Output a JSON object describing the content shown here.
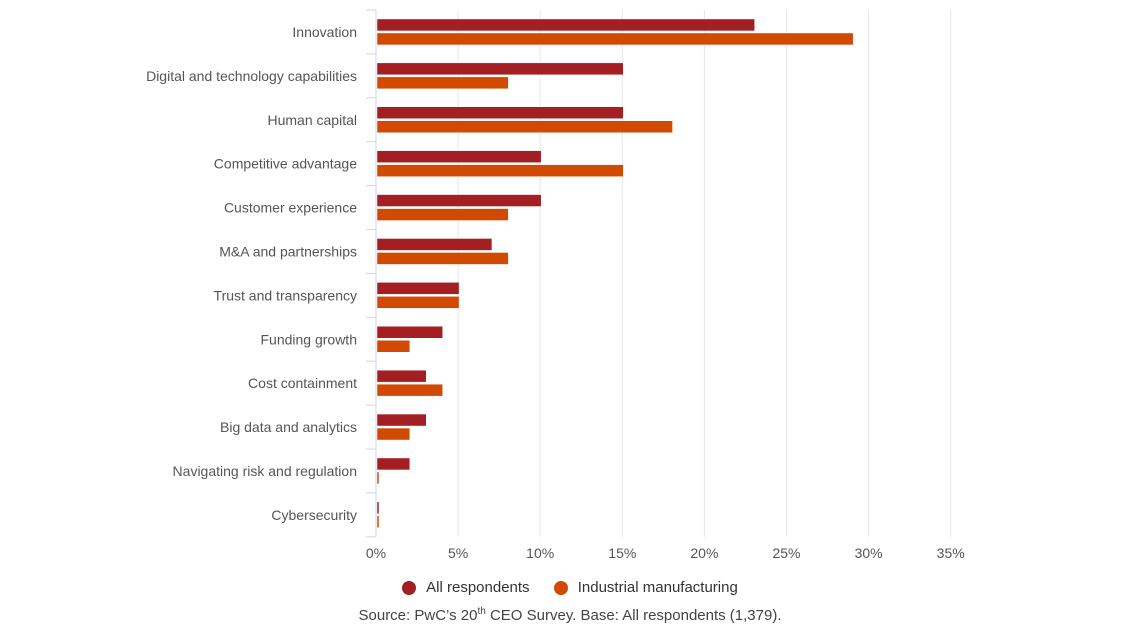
{
  "chart_data": {
    "type": "bar",
    "orientation": "horizontal",
    "title": "",
    "xlabel": "",
    "ylabel": "",
    "categories": [
      "Innovation",
      "Digital and technology capabilities",
      "Human capital",
      "Competitive advantage",
      "Customer experience",
      "M&A and partnerships",
      "Trust and transparency",
      "Funding growth",
      "Cost containment",
      "Big data and analytics",
      "Navigating risk and regulation",
      "Cybersecurity"
    ],
    "series": [
      {
        "name": "All respondents",
        "color": "#a31f23",
        "values": [
          23,
          15,
          15,
          10,
          10,
          7,
          5,
          4,
          3,
          3,
          2,
          0
        ]
      },
      {
        "name": "Industrial manufacturing",
        "color": "#d04a02",
        "values": [
          29,
          8,
          18,
          15,
          8,
          8,
          5,
          2,
          4,
          2,
          0,
          0
        ]
      }
    ],
    "xlim": [
      0,
      35
    ],
    "x_ticks": [
      "0%",
      "5%",
      "10%",
      "15%",
      "20%",
      "25%",
      "30%",
      "35%"
    ],
    "x_tick_values": [
      0,
      5,
      10,
      15,
      20,
      25,
      30,
      35
    ],
    "grid": true,
    "legend_position": "bottom"
  },
  "legend": {
    "items": [
      {
        "label": "All respondents",
        "color": "#a31f23"
      },
      {
        "label": "Industrial manufacturing",
        "color": "#d04a02"
      }
    ]
  },
  "source": {
    "prefix": "Source: PwC’s 20",
    "sup": "th",
    "suffix": " CEO Survey. Base: All respondents (1,379)."
  }
}
